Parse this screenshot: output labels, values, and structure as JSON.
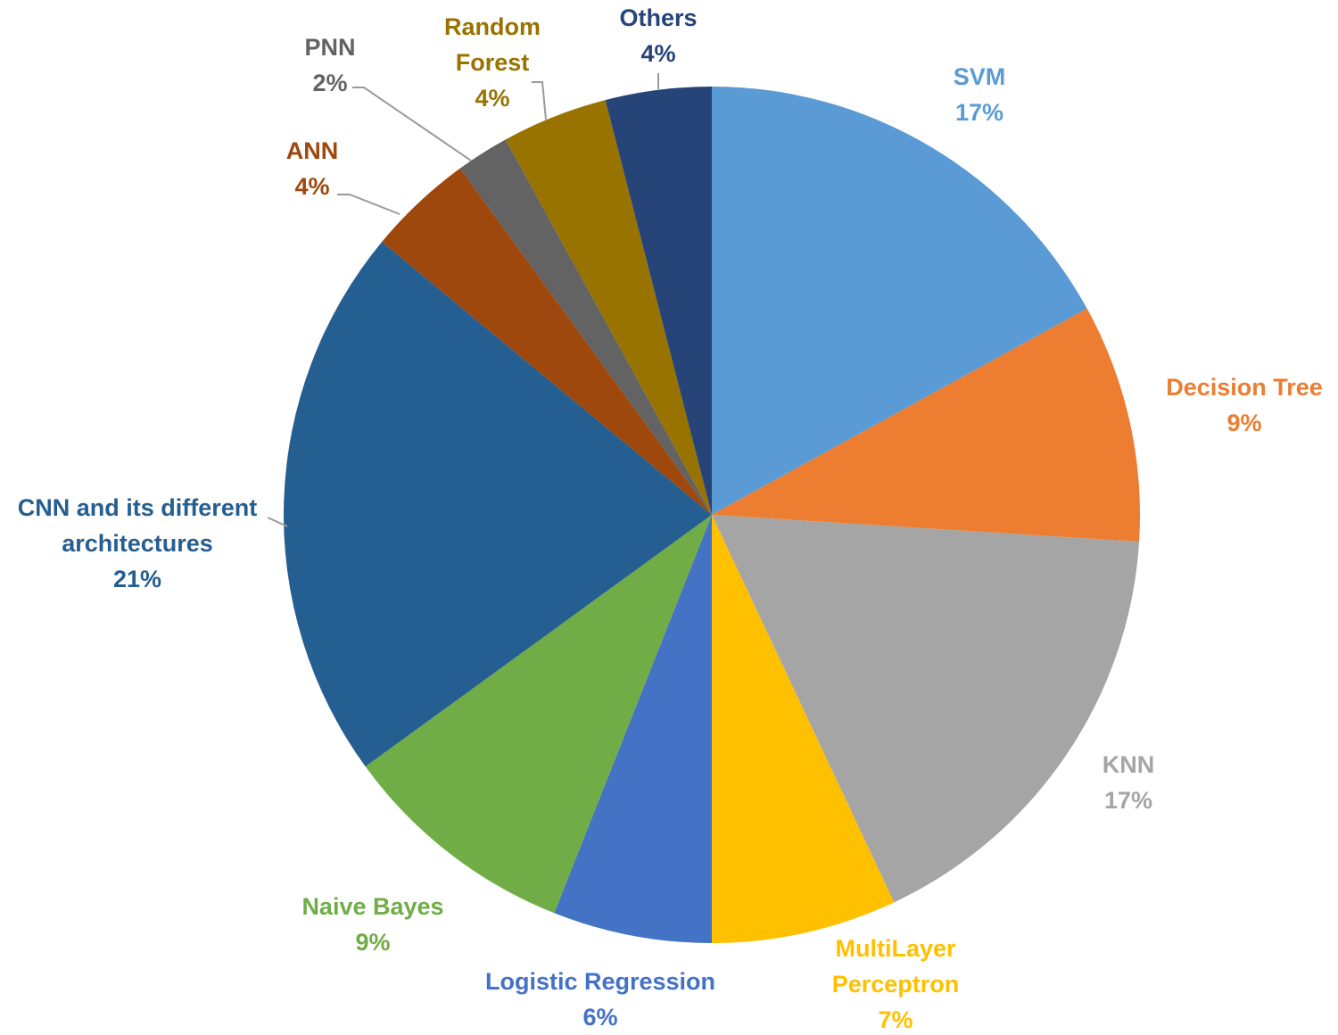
{
  "chart_data": {
    "type": "pie",
    "title": "",
    "start_angle_deg": 0,
    "direction": "clockwise",
    "slices": [
      {
        "name": "SVM",
        "value": 17,
        "label_lines": [
          "SVM"
        ],
        "pct_label": "17%",
        "color": "#5B9BD5",
        "text_color": "#5B9BD5"
      },
      {
        "name": "Decision Tree",
        "value": 9,
        "label_lines": [
          "Decision Tree"
        ],
        "pct_label": "9%",
        "color": "#ED7D31",
        "text_color": "#ED7D31"
      },
      {
        "name": "KNN",
        "value": 17,
        "label_lines": [
          "KNN"
        ],
        "pct_label": "17%",
        "color": "#A5A5A5",
        "text_color": "#A5A5A5"
      },
      {
        "name": "MultiLayer Perceptron",
        "value": 7,
        "label_lines": [
          "MultiLayer",
          "Perceptron"
        ],
        "pct_label": "7%",
        "color": "#FFC000",
        "text_color": "#FFC000"
      },
      {
        "name": "Logistic Regression",
        "value": 6,
        "label_lines": [
          "Logistic Regression"
        ],
        "pct_label": "6%",
        "color": "#4472C4",
        "text_color": "#4472C4"
      },
      {
        "name": "Naive Bayes",
        "value": 9,
        "label_lines": [
          "Naive Bayes"
        ],
        "pct_label": "9%",
        "color": "#70AD47",
        "text_color": "#70AD47"
      },
      {
        "name": "CNN and its different architectures",
        "value": 21,
        "label_lines": [
          "CNN and its different",
          "architectures"
        ],
        "pct_label": "21%",
        "color": "#255E91",
        "text_color": "#255E91"
      },
      {
        "name": "ANN",
        "value": 4,
        "label_lines": [
          "ANN"
        ],
        "pct_label": "4%",
        "color": "#9E480E",
        "text_color": "#9E480E"
      },
      {
        "name": "PNN",
        "value": 2,
        "label_lines": [
          "PNN"
        ],
        "pct_label": "2%",
        "color": "#636363",
        "text_color": "#636363"
      },
      {
        "name": "Random Forest",
        "value": 4,
        "label_lines": [
          "Random",
          "Forest"
        ],
        "pct_label": "4%",
        "color": "#997300",
        "text_color": "#997300"
      },
      {
        "name": "Others",
        "value": 4,
        "label_lines": [
          "Others"
        ],
        "pct_label": "4%",
        "color": "#264478",
        "text_color": "#264478"
      }
    ]
  }
}
